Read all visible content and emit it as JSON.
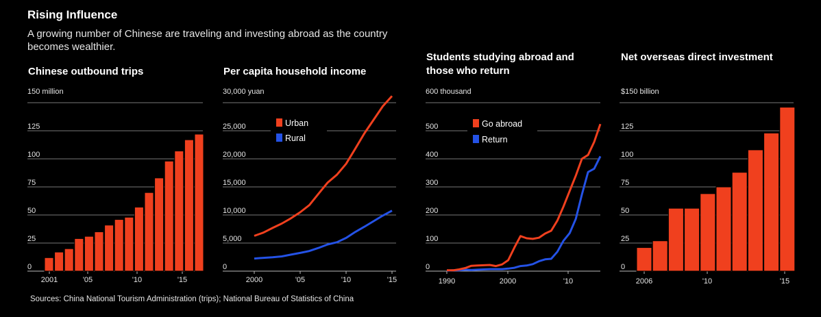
{
  "header": {
    "title": "Rising Influence",
    "subtitle": "A growing number of Chinese are traveling and investing abroad as the country becomes wealthier."
  },
  "source": "Sources: China National Tourism Administration (trips); National Bureau of Statistics of China",
  "colors": {
    "red": "#f0401e",
    "blue": "#2452e6",
    "grid": "#777777",
    "background": "#000000"
  },
  "chart_data": [
    {
      "id": "trips",
      "type": "bar",
      "title": "Chinese outbound trips",
      "unit_label": "150 million",
      "ylim": [
        0,
        150
      ],
      "yticks": [
        "0",
        "25",
        "50",
        "75",
        "100",
        "125"
      ],
      "xtick_labels": [
        "2001",
        "'05",
        "'10",
        "'15"
      ],
      "categories": [
        2001,
        2002,
        2003,
        2004,
        2005,
        2006,
        2007,
        2008,
        2009,
        2010,
        2011,
        2012,
        2013,
        2014,
        2015,
        2016
      ],
      "values": [
        12,
        17,
        20,
        29,
        31,
        35,
        41,
        46,
        48,
        57,
        70,
        83,
        98,
        107,
        117,
        122
      ]
    },
    {
      "id": "income",
      "type": "line",
      "title": "Per capita household income",
      "unit_label": "30,000 yuan",
      "ylim": [
        0,
        30000
      ],
      "yticks": [
        "0",
        "5,000",
        "10,000",
        "15,000",
        "20,000",
        "25,000"
      ],
      "xtick_labels": [
        "2000",
        "'05",
        "'10",
        "'15"
      ],
      "x": [
        2000,
        2001,
        2002,
        2003,
        2004,
        2005,
        2006,
        2007,
        2008,
        2009,
        2010,
        2011,
        2012,
        2013,
        2014,
        2015
      ],
      "series": [
        {
          "name": "Urban",
          "values": [
            6280,
            6860,
            7700,
            8470,
            9420,
            10490,
            11760,
            13790,
            15780,
            17175,
            19110,
            21810,
            24560,
            26960,
            29380,
            31200
          ]
        },
        {
          "name": "Rural",
          "values": [
            2250,
            2370,
            2480,
            2620,
            2940,
            3250,
            3590,
            4140,
            4760,
            5150,
            5920,
            6980,
            7920,
            8900,
            9890,
            10770
          ]
        }
      ]
    },
    {
      "id": "students",
      "type": "line",
      "title": "Students studying abroad and those who return",
      "unit_label": "600 thousand",
      "ylim": [
        0,
        600
      ],
      "yticks": [
        "0",
        "100",
        "200",
        "300",
        "400",
        "500"
      ],
      "xtick_labels": [
        "1990",
        "2000",
        "'10"
      ],
      "x": [
        1990,
        1991,
        1992,
        1993,
        1994,
        1995,
        1996,
        1997,
        1998,
        1999,
        2000,
        2001,
        2002,
        2003,
        2004,
        2005,
        2006,
        2007,
        2008,
        2009,
        2010,
        2011,
        2012,
        2013,
        2014,
        2015
      ],
      "series": [
        {
          "name": "Go abroad",
          "values": [
            3,
            3,
            6,
            11,
            19,
            20,
            21,
            22,
            18,
            24,
            39,
            84,
            125,
            117,
            115,
            119,
            134,
            144,
            180,
            230,
            285,
            340,
            400,
            414,
            460,
            524
          ]
        },
        {
          "name": "Return",
          "values": [
            2,
            3,
            3,
            5,
            4,
            5,
            6,
            7,
            7,
            7,
            9,
            12,
            18,
            20,
            25,
            35,
            42,
            44,
            69,
            108,
            135,
            186,
            273,
            353,
            365,
            409
          ]
        }
      ]
    },
    {
      "id": "investment",
      "type": "bar",
      "title": "Net overseas direct investment",
      "unit_label": "$150 billion",
      "ylim": [
        0,
        150
      ],
      "yticks": [
        "0",
        "25",
        "50",
        "75",
        "100",
        "125"
      ],
      "xtick_labels": [
        "2006",
        "'10",
        "'15"
      ],
      "categories": [
        2006,
        2007,
        2008,
        2009,
        2010,
        2011,
        2012,
        2013,
        2014,
        2015
      ],
      "values": [
        21,
        27,
        56,
        56,
        69,
        75,
        88,
        108,
        123,
        146
      ]
    }
  ]
}
